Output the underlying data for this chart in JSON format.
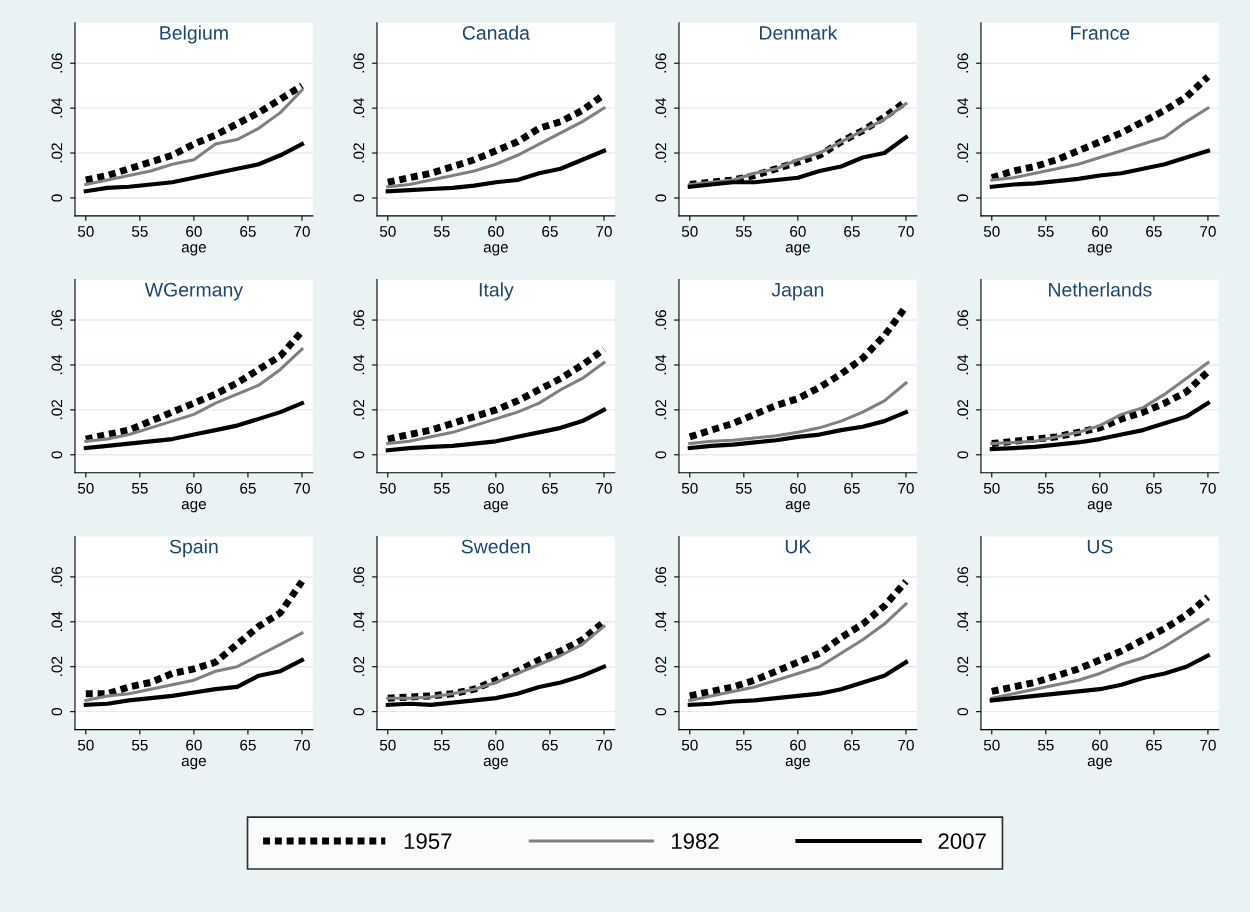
{
  "chart_data": [
    {
      "type": "line",
      "title": "Belgium",
      "xlabel": "age",
      "x": [
        50,
        52,
        54,
        56,
        58,
        60,
        62,
        64,
        66,
        68,
        70
      ],
      "xlim": [
        49,
        71
      ],
      "xticks": [
        50,
        55,
        60,
        65,
        70
      ],
      "ylim": [
        -0.008,
        0.078
      ],
      "yticks": [
        {
          "value": 0,
          "label": "0"
        },
        {
          "value": 0.02,
          "label": ".02"
        },
        {
          "value": 0.04,
          "label": ".04"
        },
        {
          "value": 0.06,
          "label": ".06"
        }
      ],
      "grid": "y",
      "legend": "bottom",
      "series": [
        {
          "name": "1957",
          "color": "#000000",
          "line_style": "dotted",
          "values": [
            0.008,
            0.01,
            0.013,
            0.016,
            0.019,
            0.024,
            0.028,
            0.033,
            0.038,
            0.044,
            0.05
          ]
        },
        {
          "name": "1982",
          "color": "#808080",
          "line_style": "solid",
          "values": [
            0.006,
            0.008,
            0.01,
            0.012,
            0.015,
            0.017,
            0.024,
            0.026,
            0.031,
            0.038,
            0.048
          ]
        },
        {
          "name": "2007",
          "color": "#000000",
          "line_style": "solid",
          "values": [
            0.003,
            0.0045,
            0.005,
            0.006,
            0.007,
            0.009,
            0.011,
            0.013,
            0.015,
            0.019,
            0.024
          ]
        }
      ]
    },
    {
      "type": "line",
      "title": "Canada",
      "xlabel": "age",
      "x": [
        50,
        52,
        54,
        56,
        58,
        60,
        62,
        64,
        66,
        68,
        70
      ],
      "xlim": [
        49,
        71
      ],
      "xticks": [
        50,
        55,
        60,
        65,
        70
      ],
      "ylim": [
        -0.008,
        0.078
      ],
      "yticks": [
        {
          "value": 0,
          "label": "0"
        },
        {
          "value": 0.02,
          "label": ".02"
        },
        {
          "value": 0.04,
          "label": ".04"
        },
        {
          "value": 0.06,
          "label": ".06"
        }
      ],
      "grid": "y",
      "series": [
        {
          "color": "#000000",
          "line_style": "dotted",
          "values": [
            0.007,
            0.009,
            0.011,
            0.014,
            0.017,
            0.021,
            0.025,
            0.031,
            0.034,
            0.039,
            0.046
          ]
        },
        {
          "color": "#808080",
          "line_style": "solid",
          "values": [
            0.005,
            0.006,
            0.008,
            0.01,
            0.012,
            0.015,
            0.019,
            0.024,
            0.029,
            0.034,
            0.04
          ]
        },
        {
          "color": "#000000",
          "line_style": "solid",
          "values": [
            0.003,
            0.0035,
            0.004,
            0.0045,
            0.0055,
            0.007,
            0.008,
            0.011,
            0.013,
            0.017,
            0.021
          ]
        }
      ]
    },
    {
      "type": "line",
      "title": "Denmark",
      "xlabel": "age",
      "x": [
        50,
        52,
        54,
        56,
        58,
        60,
        62,
        64,
        66,
        68,
        70
      ],
      "xlim": [
        49,
        71
      ],
      "xticks": [
        50,
        55,
        60,
        65,
        70
      ],
      "ylim": [
        -0.008,
        0.078
      ],
      "yticks": [
        {
          "value": 0,
          "label": "0"
        },
        {
          "value": 0.02,
          "label": ".02"
        },
        {
          "value": 0.04,
          "label": ".04"
        },
        {
          "value": 0.06,
          "label": ".06"
        }
      ],
      "grid": "y",
      "series": [
        {
          "color": "#000000",
          "line_style": "dotted",
          "values": [
            0.006,
            0.007,
            0.008,
            0.01,
            0.013,
            0.016,
            0.019,
            0.025,
            0.03,
            0.036,
            0.043
          ]
        },
        {
          "color": "#808080",
          "line_style": "solid",
          "values": [
            0.006,
            0.007,
            0.008,
            0.011,
            0.013,
            0.017,
            0.02,
            0.025,
            0.03,
            0.035,
            0.042
          ]
        },
        {
          "color": "#000000",
          "line_style": "solid",
          "values": [
            0.005,
            0.006,
            0.007,
            0.007,
            0.008,
            0.009,
            0.012,
            0.014,
            0.018,
            0.02,
            0.027
          ]
        }
      ]
    },
    {
      "type": "line",
      "title": "France",
      "xlabel": "age",
      "x": [
        50,
        52,
        54,
        56,
        58,
        60,
        62,
        64,
        66,
        68,
        70
      ],
      "xlim": [
        49,
        71
      ],
      "xticks": [
        50,
        55,
        60,
        65,
        70
      ],
      "ylim": [
        -0.008,
        0.078
      ],
      "yticks": [
        {
          "value": 0,
          "label": "0"
        },
        {
          "value": 0.02,
          "label": ".02"
        },
        {
          "value": 0.04,
          "label": ".04"
        },
        {
          "value": 0.06,
          "label": ".06"
        }
      ],
      "grid": "y",
      "series": [
        {
          "color": "#000000",
          "line_style": "dotted",
          "values": [
            0.009,
            0.012,
            0.014,
            0.017,
            0.021,
            0.025,
            0.029,
            0.034,
            0.039,
            0.045,
            0.054
          ]
        },
        {
          "color": "#808080",
          "line_style": "solid",
          "values": [
            0.008,
            0.009,
            0.011,
            0.013,
            0.015,
            0.018,
            0.021,
            0.024,
            0.027,
            0.034,
            0.04
          ]
        },
        {
          "color": "#000000",
          "line_style": "solid",
          "values": [
            0.005,
            0.006,
            0.0065,
            0.0075,
            0.0085,
            0.01,
            0.011,
            0.013,
            0.015,
            0.018,
            0.021
          ]
        }
      ]
    },
    {
      "type": "line",
      "title": "WGermany",
      "xlabel": "age",
      "x": [
        50,
        52,
        54,
        56,
        58,
        60,
        62,
        64,
        66,
        68,
        70
      ],
      "xlim": [
        49,
        71
      ],
      "xticks": [
        50,
        55,
        60,
        65,
        70
      ],
      "ylim": [
        -0.008,
        0.078
      ],
      "yticks": [
        {
          "value": 0,
          "label": "0"
        },
        {
          "value": 0.02,
          "label": ".02"
        },
        {
          "value": 0.04,
          "label": ".04"
        },
        {
          "value": 0.06,
          "label": ".06"
        }
      ],
      "grid": "y",
      "series": [
        {
          "color": "#000000",
          "line_style": "dotted",
          "values": [
            0.007,
            0.009,
            0.011,
            0.015,
            0.019,
            0.023,
            0.027,
            0.032,
            0.038,
            0.044,
            0.055
          ]
        },
        {
          "color": "#808080",
          "line_style": "solid",
          "values": [
            0.006,
            0.007,
            0.009,
            0.012,
            0.015,
            0.018,
            0.023,
            0.027,
            0.031,
            0.038,
            0.047
          ]
        },
        {
          "color": "#000000",
          "line_style": "solid",
          "values": [
            0.003,
            0.004,
            0.005,
            0.006,
            0.007,
            0.009,
            0.011,
            0.013,
            0.016,
            0.019,
            0.023
          ]
        }
      ]
    },
    {
      "type": "line",
      "title": "Italy",
      "xlabel": "age",
      "x": [
        50,
        52,
        54,
        56,
        58,
        60,
        62,
        64,
        66,
        68,
        70
      ],
      "xlim": [
        49,
        71
      ],
      "xticks": [
        50,
        55,
        60,
        65,
        70
      ],
      "ylim": [
        -0.008,
        0.078
      ],
      "yticks": [
        {
          "value": 0,
          "label": "0"
        },
        {
          "value": 0.02,
          "label": ".02"
        },
        {
          "value": 0.04,
          "label": ".04"
        },
        {
          "value": 0.06,
          "label": ".06"
        }
      ],
      "grid": "y",
      "series": [
        {
          "color": "#000000",
          "line_style": "dotted",
          "values": [
            0.007,
            0.009,
            0.011,
            0.014,
            0.017,
            0.02,
            0.024,
            0.029,
            0.034,
            0.04,
            0.047
          ]
        },
        {
          "color": "#808080",
          "line_style": "solid",
          "values": [
            0.005,
            0.006,
            0.008,
            0.01,
            0.013,
            0.016,
            0.019,
            0.023,
            0.029,
            0.034,
            0.041
          ]
        },
        {
          "color": "#000000",
          "line_style": "solid",
          "values": [
            0.002,
            0.003,
            0.0035,
            0.004,
            0.005,
            0.006,
            0.008,
            0.01,
            0.012,
            0.015,
            0.02
          ]
        }
      ]
    },
    {
      "type": "line",
      "title": "Japan",
      "xlabel": "age",
      "x": [
        50,
        52,
        54,
        56,
        58,
        60,
        62,
        64,
        66,
        68,
        70
      ],
      "xlim": [
        49,
        71
      ],
      "xticks": [
        50,
        55,
        60,
        65,
        70
      ],
      "ylim": [
        -0.008,
        0.078
      ],
      "yticks": [
        {
          "value": 0,
          "label": "0"
        },
        {
          "value": 0.02,
          "label": ".02"
        },
        {
          "value": 0.04,
          "label": ".04"
        },
        {
          "value": 0.06,
          "label": ".06"
        }
      ],
      "grid": "y",
      "series": [
        {
          "color": "#000000",
          "line_style": "dotted",
          "values": [
            0.008,
            0.011,
            0.014,
            0.018,
            0.022,
            0.025,
            0.03,
            0.036,
            0.043,
            0.053,
            0.066
          ]
        },
        {
          "color": "#808080",
          "line_style": "solid",
          "values": [
            0.005,
            0.006,
            0.0065,
            0.0075,
            0.0085,
            0.01,
            0.012,
            0.015,
            0.019,
            0.024,
            0.032
          ]
        },
        {
          "color": "#000000",
          "line_style": "solid",
          "values": [
            0.003,
            0.004,
            0.0045,
            0.0055,
            0.0065,
            0.008,
            0.009,
            0.011,
            0.0125,
            0.015,
            0.019
          ]
        }
      ]
    },
    {
      "type": "line",
      "title": "Netherlands",
      "xlabel": "age",
      "x": [
        50,
        52,
        54,
        56,
        58,
        60,
        62,
        64,
        66,
        68,
        70
      ],
      "xlim": [
        49,
        71
      ],
      "xticks": [
        50,
        55,
        60,
        65,
        70
      ],
      "ylim": [
        -0.008,
        0.078
      ],
      "yticks": [
        {
          "value": 0,
          "label": "0"
        },
        {
          "value": 0.02,
          "label": ".02"
        },
        {
          "value": 0.04,
          "label": ".04"
        },
        {
          "value": 0.06,
          "label": ".06"
        }
      ],
      "grid": "y",
      "series": [
        {
          "color": "#000000",
          "line_style": "dotted",
          "values": [
            0.005,
            0.006,
            0.007,
            0.008,
            0.01,
            0.012,
            0.016,
            0.019,
            0.023,
            0.028,
            0.037
          ]
        },
        {
          "color": "#808080",
          "line_style": "solid",
          "values": [
            0.005,
            0.0055,
            0.006,
            0.008,
            0.01,
            0.013,
            0.018,
            0.021,
            0.027,
            0.034,
            0.041
          ]
        },
        {
          "color": "#000000",
          "line_style": "solid",
          "values": [
            0.0025,
            0.003,
            0.0035,
            0.0045,
            0.0055,
            0.007,
            0.009,
            0.011,
            0.014,
            0.017,
            0.023
          ]
        }
      ]
    },
    {
      "type": "line",
      "title": "Spain",
      "xlabel": "age",
      "x": [
        50,
        52,
        54,
        56,
        58,
        60,
        62,
        64,
        66,
        68,
        70
      ],
      "xlim": [
        49,
        71
      ],
      "xticks": [
        50,
        55,
        60,
        65,
        70
      ],
      "ylim": [
        -0.008,
        0.078
      ],
      "yticks": [
        {
          "value": 0,
          "label": "0"
        },
        {
          "value": 0.02,
          "label": ".02"
        },
        {
          "value": 0.04,
          "label": ".04"
        },
        {
          "value": 0.06,
          "label": ".06"
        }
      ],
      "grid": "y",
      "series": [
        {
          "color": "#000000",
          "line_style": "dotted",
          "values": [
            0.008,
            0.008,
            0.011,
            0.013,
            0.017,
            0.019,
            0.022,
            0.03,
            0.038,
            0.044,
            0.058
          ]
        },
        {
          "color": "#808080",
          "line_style": "solid",
          "values": [
            0.005,
            0.007,
            0.008,
            0.01,
            0.012,
            0.014,
            0.018,
            0.02,
            0.025,
            0.03,
            0.035
          ]
        },
        {
          "color": "#000000",
          "line_style": "solid",
          "values": [
            0.003,
            0.0035,
            0.005,
            0.006,
            0.007,
            0.0085,
            0.01,
            0.011,
            0.016,
            0.018,
            0.023
          ]
        }
      ]
    },
    {
      "type": "line",
      "title": "Sweden",
      "xlabel": "age",
      "x": [
        50,
        52,
        54,
        56,
        58,
        60,
        62,
        64,
        66,
        68,
        70
      ],
      "xlim": [
        49,
        71
      ],
      "xticks": [
        50,
        55,
        60,
        65,
        70
      ],
      "ylim": [
        -0.008,
        0.078
      ],
      "yticks": [
        {
          "value": 0,
          "label": "0"
        },
        {
          "value": 0.02,
          "label": ".02"
        },
        {
          "value": 0.04,
          "label": ".04"
        },
        {
          "value": 0.06,
          "label": ".06"
        }
      ],
      "grid": "y",
      "series": [
        {
          "color": "#000000",
          "line_style": "dotted",
          "values": [
            0.006,
            0.0065,
            0.007,
            0.008,
            0.01,
            0.014,
            0.018,
            0.023,
            0.027,
            0.032,
            0.04
          ]
        },
        {
          "color": "#808080",
          "line_style": "solid",
          "values": [
            0.006,
            0.006,
            0.0065,
            0.008,
            0.01,
            0.013,
            0.017,
            0.021,
            0.025,
            0.03,
            0.038
          ]
        },
        {
          "color": "#000000",
          "line_style": "solid",
          "values": [
            0.003,
            0.0035,
            0.003,
            0.004,
            0.005,
            0.006,
            0.008,
            0.011,
            0.013,
            0.016,
            0.02
          ]
        }
      ]
    },
    {
      "type": "line",
      "title": "UK",
      "xlabel": "age",
      "x": [
        50,
        52,
        54,
        56,
        58,
        60,
        62,
        64,
        66,
        68,
        70
      ],
      "xlim": [
        49,
        71
      ],
      "xticks": [
        50,
        55,
        60,
        65,
        70
      ],
      "ylim": [
        -0.008,
        0.078
      ],
      "yticks": [
        {
          "value": 0,
          "label": "0"
        },
        {
          "value": 0.02,
          "label": ".02"
        },
        {
          "value": 0.04,
          "label": ".04"
        },
        {
          "value": 0.06,
          "label": ".06"
        }
      ],
      "grid": "y",
      "series": [
        {
          "color": "#000000",
          "line_style": "dotted",
          "values": [
            0.007,
            0.009,
            0.011,
            0.014,
            0.018,
            0.022,
            0.026,
            0.033,
            0.039,
            0.047,
            0.058
          ]
        },
        {
          "color": "#808080",
          "line_style": "solid",
          "values": [
            0.005,
            0.007,
            0.009,
            0.011,
            0.014,
            0.017,
            0.02,
            0.026,
            0.032,
            0.039,
            0.048
          ]
        },
        {
          "color": "#000000",
          "line_style": "solid",
          "values": [
            0.003,
            0.0035,
            0.0045,
            0.005,
            0.006,
            0.007,
            0.008,
            0.01,
            0.013,
            0.016,
            0.022
          ]
        }
      ]
    },
    {
      "type": "line",
      "title": "US",
      "xlabel": "age",
      "x": [
        50,
        52,
        54,
        56,
        58,
        60,
        62,
        64,
        66,
        68,
        70
      ],
      "xlim": [
        49,
        71
      ],
      "xticks": [
        50,
        55,
        60,
        65,
        70
      ],
      "ylim": [
        -0.008,
        0.078
      ],
      "yticks": [
        {
          "value": 0,
          "label": "0"
        },
        {
          "value": 0.02,
          "label": ".02"
        },
        {
          "value": 0.04,
          "label": ".04"
        },
        {
          "value": 0.06,
          "label": ".06"
        }
      ],
      "grid": "y",
      "series": [
        {
          "color": "#000000",
          "line_style": "dotted",
          "values": [
            0.009,
            0.011,
            0.013,
            0.016,
            0.019,
            0.023,
            0.027,
            0.032,
            0.037,
            0.043,
            0.051
          ]
        },
        {
          "color": "#808080",
          "line_style": "solid",
          "values": [
            0.006,
            0.008,
            0.01,
            0.012,
            0.014,
            0.017,
            0.021,
            0.024,
            0.029,
            0.035,
            0.041
          ]
        },
        {
          "color": "#000000",
          "line_style": "solid",
          "values": [
            0.005,
            0.006,
            0.007,
            0.008,
            0.009,
            0.01,
            0.012,
            0.015,
            0.017,
            0.02,
            0.025
          ]
        }
      ]
    }
  ]
}
